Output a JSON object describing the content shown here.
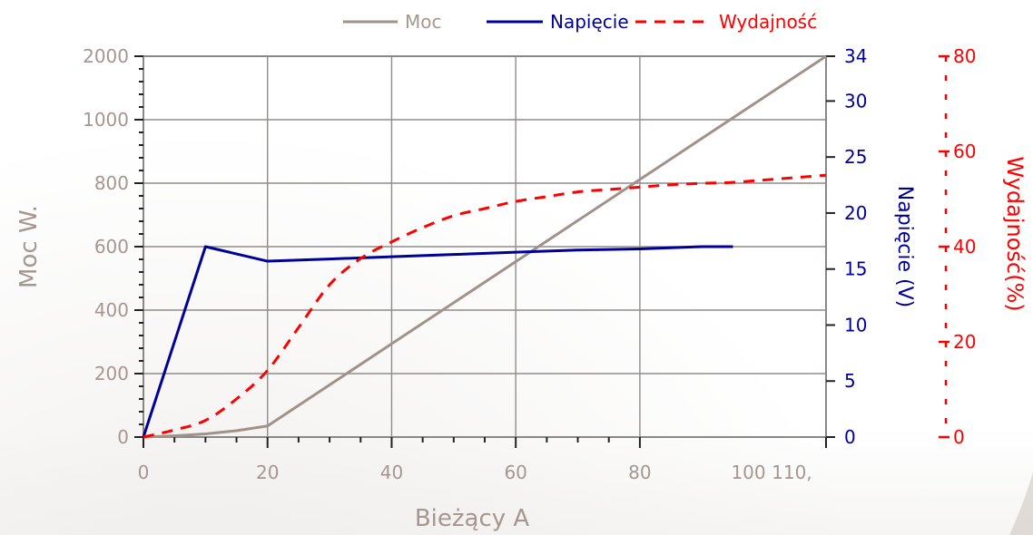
{
  "chart_data": {
    "type": "line",
    "xlabel": "Bieżący A",
    "x_ticks": [
      "0",
      "20",
      "40",
      "60",
      "80",
      "100",
      "110,"
    ],
    "xlim": [
      0,
      110
    ],
    "grid": true,
    "legend_position": "top",
    "axes": {
      "left": {
        "label": "Moc W.",
        "ticks": [
          0,
          200,
          400,
          600,
          800,
          1000,
          2000
        ],
        "note": "broken scale: 1000 to 2000 compressed into one grid interval",
        "color": "#a59690"
      },
      "right1": {
        "label": "Napięcie (V)",
        "ticks": [
          0,
          5,
          10,
          15,
          20,
          25,
          30,
          34
        ],
        "range": [
          0,
          34
        ],
        "color": "#000099"
      },
      "right2": {
        "label": "Wydajność(%)",
        "ticks": [
          0,
          20,
          40,
          60,
          80
        ],
        "range": [
          0,
          80
        ],
        "color": "#ff0000"
      }
    },
    "series": [
      {
        "name": "Moc",
        "axis": "left",
        "color": "#a0918b",
        "dash": "solid",
        "x": [
          0,
          5,
          10,
          15,
          20,
          110
        ],
        "y": [
          0,
          4,
          10,
          20,
          35,
          2000
        ]
      },
      {
        "name": "Napięcie",
        "axis": "right1",
        "color": "#000099",
        "dash": "solid",
        "x": [
          0,
          10,
          20,
          30,
          40,
          50,
          60,
          70,
          80,
          90,
          95
        ],
        "y": [
          0,
          17,
          15.7,
          15.9,
          16.1,
          16.3,
          16.5,
          16.7,
          16.8,
          17,
          17
        ]
      },
      {
        "name": "Wydajność",
        "axis": "right2",
        "color": "#ff0000",
        "dash": "dashed",
        "x": [
          0,
          5,
          10,
          15,
          20,
          25,
          30,
          35,
          40,
          45,
          50,
          55,
          60,
          65,
          70,
          75,
          80,
          85,
          90,
          95,
          100,
          105,
          110
        ],
        "y": [
          0,
          1.5,
          3.5,
          8,
          14,
          23,
          32,
          37.5,
          41,
          44,
          46.5,
          48,
          49.5,
          50.5,
          51.5,
          52,
          52.5,
          53,
          53.3,
          53.5,
          54,
          54.5,
          55
        ]
      }
    ]
  }
}
